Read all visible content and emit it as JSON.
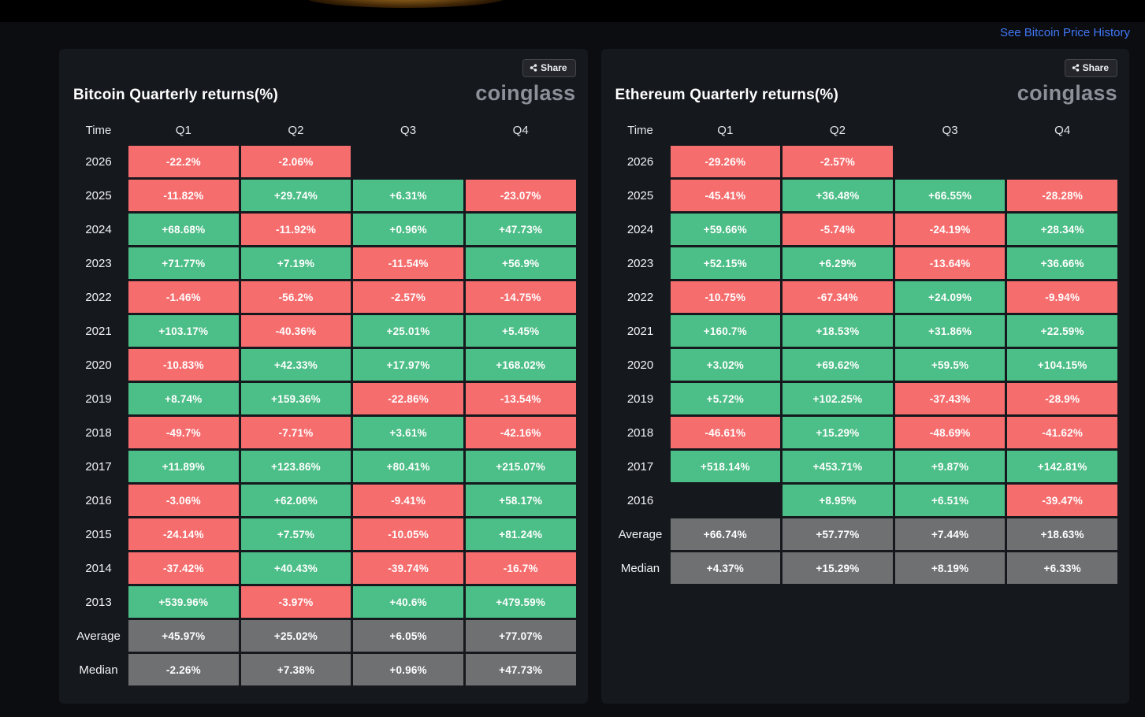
{
  "ui": {
    "top_link": "See Bitcoin Price History",
    "share_label": "Share",
    "logo": "coinglass"
  },
  "colors": {
    "positive": "#4cbe87",
    "negative": "#f66d6e",
    "summary": "#6f7072",
    "link": "#4177f6"
  },
  "chart_data": [
    {
      "type": "heatmap",
      "title": "Bitcoin Quarterly returns(%)",
      "columns": [
        "Time",
        "Q1",
        "Q2",
        "Q3",
        "Q4"
      ],
      "legend_note": "green = positive return, red = negative return, gray = summary",
      "rows": [
        {
          "label": "2026",
          "kind": "data",
          "values": [
            "-22.2%",
            "-2.06%",
            null,
            null
          ]
        },
        {
          "label": "2025",
          "kind": "data",
          "values": [
            "-11.82%",
            "+29.74%",
            "+6.31%",
            "-23.07%"
          ]
        },
        {
          "label": "2024",
          "kind": "data",
          "values": [
            "+68.68%",
            "-11.92%",
            "+0.96%",
            "+47.73%"
          ]
        },
        {
          "label": "2023",
          "kind": "data",
          "values": [
            "+71.77%",
            "+7.19%",
            "-11.54%",
            "+56.9%"
          ]
        },
        {
          "label": "2022",
          "kind": "data",
          "values": [
            "-1.46%",
            "-56.2%",
            "-2.57%",
            "-14.75%"
          ]
        },
        {
          "label": "2021",
          "kind": "data",
          "values": [
            "+103.17%",
            "-40.36%",
            "+25.01%",
            "+5.45%"
          ]
        },
        {
          "label": "2020",
          "kind": "data",
          "values": [
            "-10.83%",
            "+42.33%",
            "+17.97%",
            "+168.02%"
          ]
        },
        {
          "label": "2019",
          "kind": "data",
          "values": [
            "+8.74%",
            "+159.36%",
            "-22.86%",
            "-13.54%"
          ]
        },
        {
          "label": "2018",
          "kind": "data",
          "values": [
            "-49.7%",
            "-7.71%",
            "+3.61%",
            "-42.16%"
          ]
        },
        {
          "label": "2017",
          "kind": "data",
          "values": [
            "+11.89%",
            "+123.86%",
            "+80.41%",
            "+215.07%"
          ]
        },
        {
          "label": "2016",
          "kind": "data",
          "values": [
            "-3.06%",
            "+62.06%",
            "-9.41%",
            "+58.17%"
          ]
        },
        {
          "label": "2015",
          "kind": "data",
          "values": [
            "-24.14%",
            "+7.57%",
            "-10.05%",
            "+81.24%"
          ]
        },
        {
          "label": "2014",
          "kind": "data",
          "values": [
            "-37.42%",
            "+40.43%",
            "-39.74%",
            "-16.7%"
          ]
        },
        {
          "label": "2013",
          "kind": "data",
          "values": [
            "+539.96%",
            "-3.97%",
            "+40.6%",
            "+479.59%"
          ]
        },
        {
          "label": "Average",
          "kind": "summary",
          "values": [
            "+45.97%",
            "+25.02%",
            "+6.05%",
            "+77.07%"
          ]
        },
        {
          "label": "Median",
          "kind": "summary",
          "values": [
            "-2.26%",
            "+7.38%",
            "+0.96%",
            "+47.73%"
          ]
        }
      ]
    },
    {
      "type": "heatmap",
      "title": "Ethereum Quarterly returns(%)",
      "columns": [
        "Time",
        "Q1",
        "Q2",
        "Q3",
        "Q4"
      ],
      "legend_note": "green = positive return, red = negative return, gray = summary",
      "rows": [
        {
          "label": "2026",
          "kind": "data",
          "values": [
            "-29.26%",
            "-2.57%",
            null,
            null
          ]
        },
        {
          "label": "2025",
          "kind": "data",
          "values": [
            "-45.41%",
            "+36.48%",
            "+66.55%",
            "-28.28%"
          ]
        },
        {
          "label": "2024",
          "kind": "data",
          "values": [
            "+59.66%",
            "-5.74%",
            "-24.19%",
            "+28.34%"
          ]
        },
        {
          "label": "2023",
          "kind": "data",
          "values": [
            "+52.15%",
            "+6.29%",
            "-13.64%",
            "+36.66%"
          ]
        },
        {
          "label": "2022",
          "kind": "data",
          "values": [
            "-10.75%",
            "-67.34%",
            "+24.09%",
            "-9.94%"
          ]
        },
        {
          "label": "2021",
          "kind": "data",
          "values": [
            "+160.7%",
            "+18.53%",
            "+31.86%",
            "+22.59%"
          ]
        },
        {
          "label": "2020",
          "kind": "data",
          "values": [
            "+3.02%",
            "+69.62%",
            "+59.5%",
            "+104.15%"
          ]
        },
        {
          "label": "2019",
          "kind": "data",
          "values": [
            "+5.72%",
            "+102.25%",
            "-37.43%",
            "-28.9%"
          ]
        },
        {
          "label": "2018",
          "kind": "data",
          "values": [
            "-46.61%",
            "+15.29%",
            "-48.69%",
            "-41.62%"
          ]
        },
        {
          "label": "2017",
          "kind": "data",
          "values": [
            "+518.14%",
            "+453.71%",
            "+9.87%",
            "+142.81%"
          ]
        },
        {
          "label": "2016",
          "kind": "data",
          "values": [
            null,
            "+8.95%",
            "+6.51%",
            "-39.47%"
          ]
        },
        {
          "label": "Average",
          "kind": "summary",
          "values": [
            "+66.74%",
            "+57.77%",
            "+7.44%",
            "+18.63%"
          ]
        },
        {
          "label": "Median",
          "kind": "summary",
          "values": [
            "+4.37%",
            "+15.29%",
            "+8.19%",
            "+6.33%"
          ]
        }
      ]
    }
  ]
}
